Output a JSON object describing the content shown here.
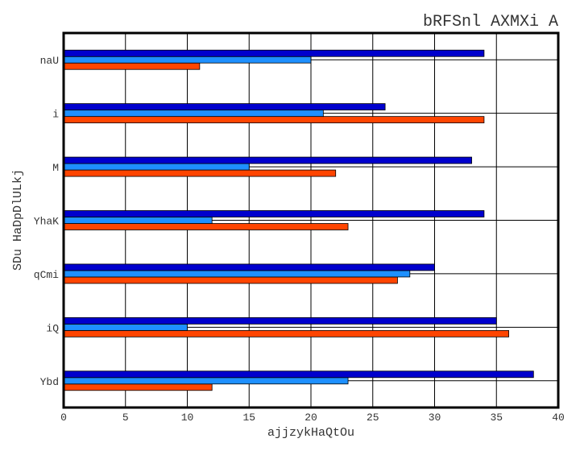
{
  "chart_data": {
    "type": "bar",
    "orientation": "horizontal",
    "title": "bRFSnl AXMXi A",
    "xlabel": "ajjzykHaQtOu",
    "ylabel": "SDu HaDpDlULkj",
    "xlim": [
      0,
      40
    ],
    "xticks": [
      0,
      5,
      10,
      15,
      20,
      25,
      30,
      35,
      40
    ],
    "grid": true,
    "categories": [
      "Ybd",
      "iQ",
      "qCmi",
      "YhaK",
      "M",
      "i",
      "naU"
    ],
    "series": [
      {
        "color": "#ff4500",
        "values": [
          12,
          36,
          27,
          23,
          22,
          34,
          11
        ]
      },
      {
        "color": "#1e90ff",
        "values": [
          23,
          10,
          28,
          12,
          15,
          21,
          20
        ]
      },
      {
        "color": "#0000cd",
        "values": [
          38,
          35,
          30,
          34,
          33,
          26,
          34
        ]
      }
    ]
  }
}
